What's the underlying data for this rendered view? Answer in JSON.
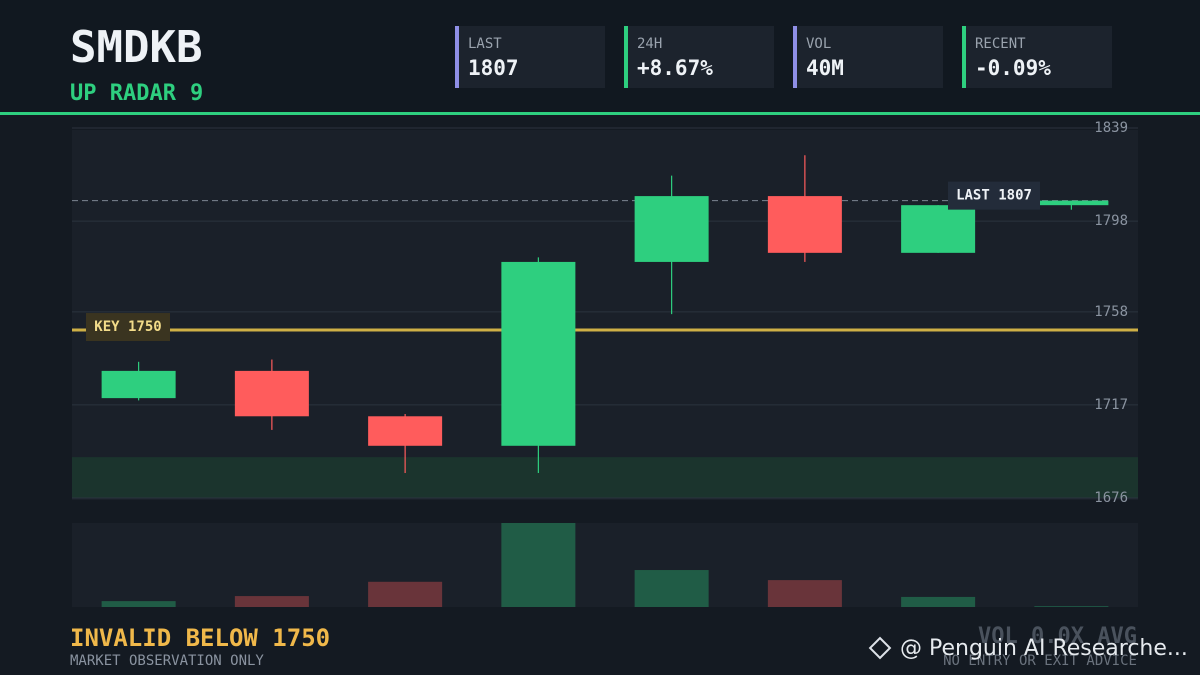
{
  "header": {
    "symbol": "SMDKB",
    "tag": "UP RADAR",
    "tag_value": "9",
    "stats": [
      {
        "label": "LAST",
        "value": "1807",
        "color": "#8f8fe6"
      },
      {
        "label": "24H",
        "value": "+8.67%",
        "color": "#2ecf7f"
      },
      {
        "label": "VOL",
        "value": "40M",
        "color": "#8f8fe6"
      },
      {
        "label": "RECENT",
        "value": "-0.09%",
        "color": "#2ecf7f"
      }
    ]
  },
  "chart_data": {
    "type": "candlestick",
    "open": [
      1720,
      1732,
      1712,
      1699,
      1780,
      1809,
      1784,
      1805
    ],
    "high": [
      1736,
      1737,
      1713,
      1782,
      1818,
      1827,
      1805,
      1807
    ],
    "low": [
      1719,
      1706,
      1687,
      1687,
      1757,
      1780,
      1784,
      1803
    ],
    "close": [
      1732,
      1712,
      1699,
      1780,
      1809,
      1784,
      1805,
      1807
    ],
    "volumes": [
      7,
      13,
      30,
      100,
      44,
      32,
      12,
      1
    ],
    "up_color": "#2ecf7f",
    "down_color": "#ff5c5c",
    "ylim": [
      1676,
      1839
    ],
    "yticks": [
      1839,
      1798,
      1758,
      1717,
      1676
    ],
    "grid": true,
    "zone": [
      1676,
      1694
    ],
    "key_level": 1750,
    "key_label": "KEY 1750",
    "key_color": "#e3c04a",
    "last_level": 1807,
    "last_label": "LAST 1807"
  },
  "footer": {
    "warning": "INVALID BELOW 1750",
    "note": "MARKET OBSERVATION ONLY",
    "volume_note": "VOL 0.0X AVG",
    "disclaimer": "NO ENTRY OR EXIT ADVICE"
  },
  "watermark": "@ Penguin AI Researche..."
}
